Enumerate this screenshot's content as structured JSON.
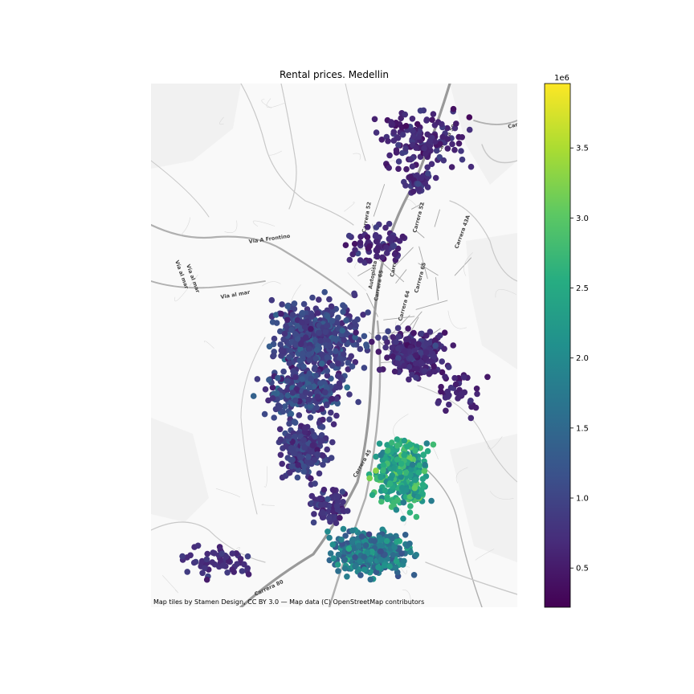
{
  "title": "Rental prices. Medellin",
  "attribution": "Map tiles by Stamen Design, CC BY 3.0 — Map data (C) OpenStreetMap contributors",
  "colorbar": {
    "multiplier": "1e6",
    "min": 0.22,
    "max": 3.96,
    "ticks": [
      {
        "value": 0.5,
        "label": "0.5"
      },
      {
        "value": 1.0,
        "label": "1.0"
      },
      {
        "value": 1.5,
        "label": "1.5"
      },
      {
        "value": 2.0,
        "label": "2.0"
      },
      {
        "value": 2.5,
        "label": "2.5"
      },
      {
        "value": 3.0,
        "label": "3.0"
      },
      {
        "value": 3.5,
        "label": "3.5"
      }
    ]
  },
  "colormap": "viridis",
  "map_labels": [
    {
      "text": "Vía A Frontino"
    },
    {
      "text": "Via al mar"
    },
    {
      "text": "Vía al mar"
    },
    {
      "text": "Vía al mar"
    },
    {
      "text": "Carrera 50"
    },
    {
      "text": "Carrera 52"
    },
    {
      "text": "Carrera 64"
    },
    {
      "text": "Carrera 65"
    },
    {
      "text": "Carrera 80"
    },
    {
      "text": "Carrera 45"
    },
    {
      "text": "Carrera 51"
    },
    {
      "text": "Carrera 52"
    },
    {
      "text": "Autopista Norte"
    },
    {
      "text": "Carrera 64"
    },
    {
      "text": "Carrera 65"
    },
    {
      "text": "Carrera 43A"
    }
  ]
}
